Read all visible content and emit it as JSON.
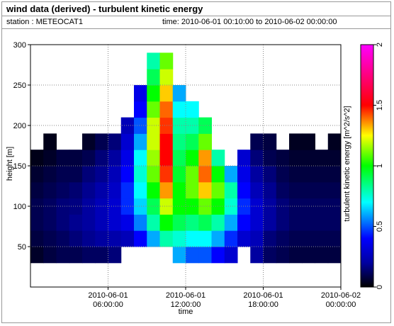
{
  "chart_data": {
    "type": "heatmap",
    "title": "wind data (derived) - turbulent kinetic energy",
    "station": "station : METEOCAT1",
    "time_range": "time: 2010-06-01 00:10:00 to 2010-06-02 00:00:00",
    "x_label": "time",
    "y_label": "height [m]",
    "z_label": "turbulent kinetic energy [m^2/s^2]",
    "x": [
      "2010-06-01 00:00:00",
      "2010-06-01 01:00:00",
      "2010-06-01 02:00:00",
      "2010-06-01 03:00:00",
      "2010-06-01 04:00:00",
      "2010-06-01 05:00:00",
      "2010-06-01 06:00:00",
      "2010-06-01 07:00:00",
      "2010-06-01 08:00:00",
      "2010-06-01 09:00:00",
      "2010-06-01 10:00:00",
      "2010-06-01 11:00:00",
      "2010-06-01 12:00:00",
      "2010-06-01 13:00:00",
      "2010-06-01 14:00:00",
      "2010-06-01 15:00:00",
      "2010-06-01 16:00:00",
      "2010-06-01 17:00:00",
      "2010-06-01 18:00:00",
      "2010-06-01 19:00:00",
      "2010-06-01 20:00:00",
      "2010-06-01 21:00:00",
      "2010-06-01 22:00:00",
      "2010-06-01 23:00:00"
    ],
    "y": [
      40,
      60,
      80,
      100,
      120,
      140,
      160,
      180,
      200,
      220,
      240,
      260,
      280
    ],
    "values": [
      [
        0.05,
        0.08,
        0.1,
        0.1,
        0.08,
        0.06,
        0.03,
        null,
        null,
        null,
        null,
        null,
        null
      ],
      [
        0.08,
        0.1,
        0.12,
        0.12,
        0.1,
        0.08,
        0.05,
        0.03,
        null,
        null,
        null,
        null,
        null
      ],
      [
        0.1,
        0.12,
        0.15,
        0.15,
        0.12,
        0.1,
        0.08,
        null,
        null,
        null,
        null,
        null,
        null
      ],
      [
        0.1,
        0.15,
        0.18,
        0.16,
        0.14,
        0.1,
        0.08,
        null,
        null,
        null,
        null,
        null,
        null
      ],
      [
        0.12,
        0.18,
        0.2,
        0.2,
        0.18,
        0.15,
        0.1,
        0.05,
        null,
        null,
        null,
        null,
        null
      ],
      [
        0.12,
        0.2,
        0.25,
        0.25,
        0.22,
        0.18,
        0.15,
        0.1,
        null,
        null,
        null,
        null,
        null
      ],
      [
        0.15,
        0.22,
        0.3,
        0.3,
        0.28,
        0.25,
        0.2,
        0.15,
        null,
        null,
        null,
        null,
        null
      ],
      [
        null,
        0.25,
        0.35,
        0.45,
        0.45,
        0.4,
        0.35,
        0.3,
        0.25,
        null,
        null,
        null,
        null
      ],
      [
        null,
        0.4,
        0.55,
        0.65,
        0.7,
        0.75,
        0.7,
        0.6,
        0.5,
        0.4,
        0.35,
        null,
        null
      ],
      [
        null,
        0.6,
        0.8,
        0.9,
        1.0,
        1.1,
        1.15,
        1.2,
        1.2,
        1.1,
        1.0,
        0.9,
        0.8
      ],
      [
        null,
        0.8,
        1.0,
        1.2,
        1.35,
        1.45,
        1.5,
        1.5,
        1.45,
        1.4,
        1.3,
        1.2,
        1.1
      ],
      [
        0.6,
        0.75,
        0.9,
        1.0,
        1.0,
        0.95,
        0.9,
        0.85,
        0.8,
        0.7,
        0.6,
        null,
        null
      ],
      [
        0.5,
        0.7,
        0.85,
        1.0,
        1.1,
        1.1,
        1.0,
        0.9,
        0.8,
        0.7,
        null,
        null,
        null
      ],
      [
        0.5,
        0.7,
        0.9,
        1.1,
        1.3,
        1.4,
        1.35,
        1.1,
        0.9,
        null,
        null,
        null,
        null
      ],
      [
        0.4,
        0.6,
        0.8,
        1.0,
        1.1,
        1.0,
        0.8,
        null,
        null,
        null,
        null,
        null,
        null
      ],
      [
        0.3,
        0.45,
        0.6,
        0.75,
        0.8,
        0.6,
        null,
        null,
        null,
        null,
        null,
        null,
        null
      ],
      [
        null,
        0.3,
        0.4,
        0.45,
        0.4,
        0.35,
        0.3,
        null,
        null,
        null,
        null,
        null,
        null
      ],
      [
        0.2,
        0.25,
        0.3,
        0.3,
        0.25,
        0.2,
        0.15,
        0.1,
        null,
        null,
        null,
        null,
        null
      ],
      [
        0.12,
        0.15,
        0.2,
        0.2,
        0.18,
        0.15,
        0.1,
        0.08,
        null,
        null,
        null,
        null,
        null
      ],
      [
        0.1,
        0.12,
        0.15,
        0.15,
        0.12,
        0.1,
        0.08,
        null,
        null,
        null,
        null,
        null,
        null
      ],
      [
        0.08,
        0.1,
        0.12,
        0.12,
        0.1,
        0.08,
        0.06,
        0.04,
        null,
        null,
        null,
        null,
        null
      ],
      [
        0.08,
        0.1,
        0.12,
        0.12,
        0.1,
        0.08,
        0.06,
        0.04,
        null,
        null,
        null,
        null,
        null
      ],
      [
        0.08,
        0.1,
        0.12,
        0.12,
        0.1,
        0.08,
        0.06,
        null,
        null,
        null,
        null,
        null,
        null
      ],
      [
        0.08,
        0.1,
        0.12,
        0.12,
        0.1,
        0.08,
        0.06,
        0.04,
        null,
        null,
        null,
        null,
        null
      ]
    ],
    "xlim": [
      "2010-06-01 00:00:00",
      "2010-06-02 00:00:00"
    ],
    "xticks": [
      "2010-06-01 06:00:00",
      "2010-06-01 12:00:00",
      "2010-06-01 18:00:00",
      "2010-06-02 00:00:00"
    ],
    "ylim": [
      0,
      300
    ],
    "yticks": [
      50,
      100,
      150,
      200,
      250,
      300
    ],
    "zlim": [
      0,
      2
    ],
    "zticks": [
      0,
      0.5,
      1,
      1.5,
      2
    ],
    "colorscale": [
      [
        0,
        "#000000"
      ],
      [
        0.2,
        "#0000a0"
      ],
      [
        0.4,
        "#0000ff"
      ],
      [
        0.7,
        "#00ffff"
      ],
      [
        1,
        "#00ff00"
      ],
      [
        1.25,
        "#ffff00"
      ],
      [
        1.5,
        "#ff0000"
      ],
      [
        2,
        "#ff00ff"
      ]
    ],
    "grid": true
  }
}
